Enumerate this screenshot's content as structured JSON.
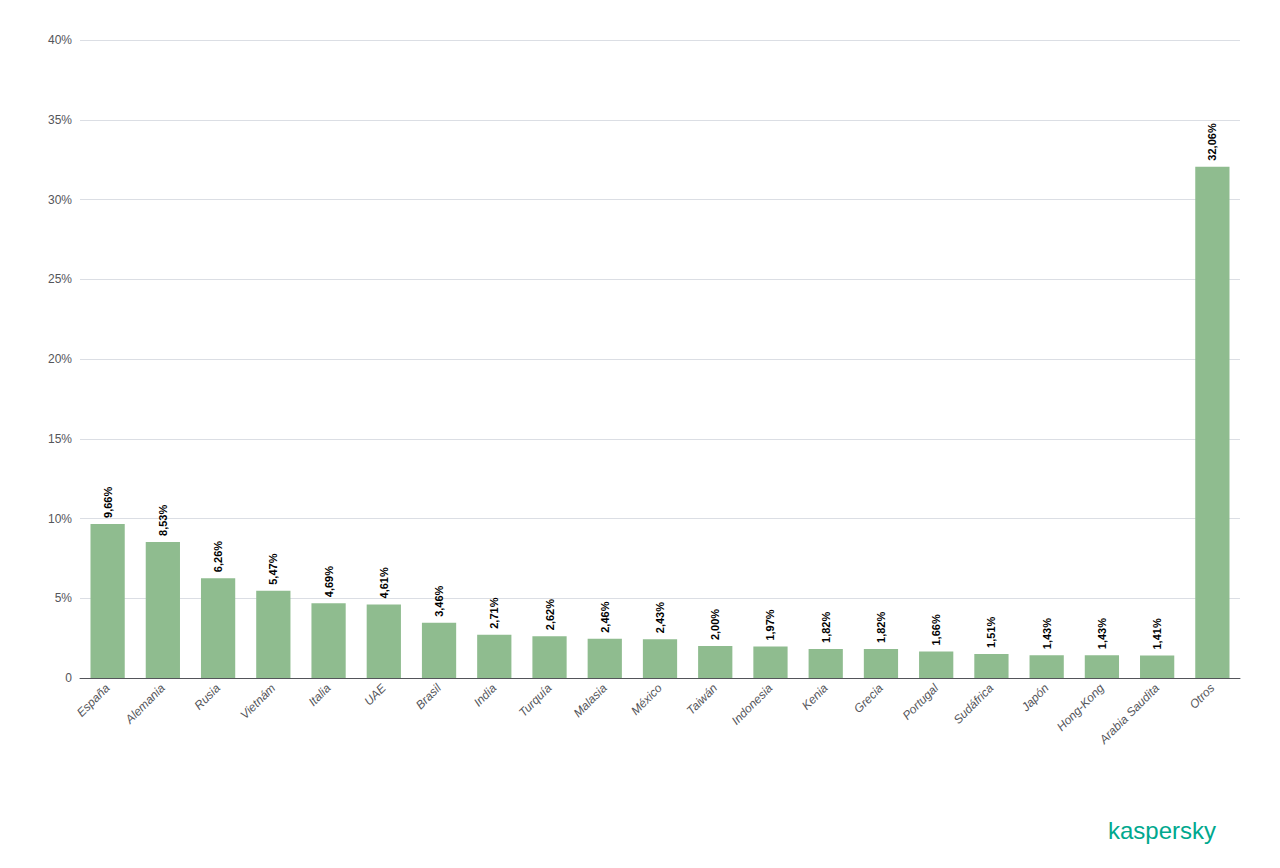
{
  "chart_data": {
    "type": "bar",
    "categories": [
      "España",
      "Alemania",
      "Rusia",
      "Vietnám",
      "Italia",
      "UAE",
      "Brasil",
      "India",
      "Turquía",
      "Malasia",
      "México",
      "Taiwán",
      "Indonesia",
      "Kenia",
      "Grecia",
      "Portugal",
      "Sudáfrica",
      "Japón",
      "Hong-Kong",
      "Arabia Saudita",
      "Otros"
    ],
    "values": [
      9.66,
      8.53,
      6.26,
      5.47,
      4.69,
      4.61,
      3.46,
      2.71,
      2.62,
      2.46,
      2.43,
      2.0,
      1.97,
      1.82,
      1.82,
      1.66,
      1.51,
      1.43,
      1.43,
      1.41,
      32.06
    ],
    "value_labels": [
      "9,66%",
      "8,53%",
      "6,26%",
      "5,47%",
      "4,69%",
      "4,61%",
      "3,46%",
      "2,71%",
      "2,62%",
      "2,46%",
      "2,43%",
      "2,00%",
      "1,97%",
      "1,82%",
      "1,82%",
      "1,66%",
      "1,51%",
      "1,43%",
      "1,43%",
      "1,41%",
      "32,06%"
    ],
    "data_labels": true,
    "color": "#8fbc8f",
    "ylim": [
      0,
      40
    ],
    "yticks": [
      0,
      {
        "value": 5,
        "label": "5%"
      },
      {
        "value": 10,
        "label": "10%"
      },
      {
        "value": 15,
        "label": "15%"
      },
      {
        "value": 20,
        "label": "20%"
      },
      {
        "value": 25,
        "label": "25%"
      },
      {
        "value": 30,
        "label": "30%"
      },
      {
        "value": 35,
        "label": "35%"
      },
      {
        "value": 40,
        "label": "40%"
      }
    ],
    "grid": true,
    "annotations": [
      {
        "text": "kaspersky",
        "color": "#00a88e"
      }
    ]
  }
}
